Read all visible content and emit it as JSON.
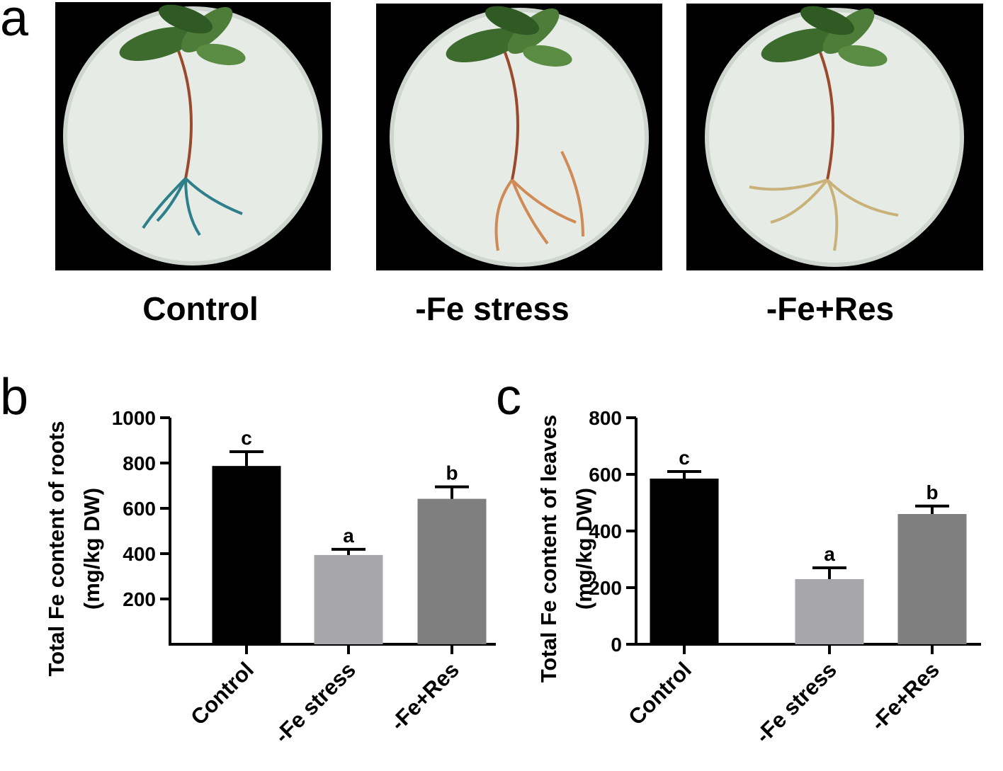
{
  "panel_a": {
    "label": "a",
    "captions": [
      "Control",
      "-Fe stress",
      "-Fe+Res"
    ]
  },
  "chart_data": [
    {
      "type": "bar",
      "panel_label": "b",
      "ylabel": [
        "Total Fe content of roots",
        "(mg/kg DW)"
      ],
      "categories": [
        "Control",
        "-Fe stress",
        "-Fe+Res"
      ],
      "values": [
        787,
        394,
        642
      ],
      "errors": [
        63,
        25,
        53
      ],
      "annotations": [
        "c",
        "a",
        "b"
      ],
      "colors": [
        "#000000",
        "#a6a6ab",
        "#7f7f7f"
      ],
      "ylim": [
        0,
        1000
      ],
      "yticks": [
        200,
        400,
        600,
        800,
        1000
      ]
    },
    {
      "type": "bar",
      "panel_label": "c",
      "ylabel": [
        "Total Fe content of leaves",
        "(mg/kg DW)"
      ],
      "categories": [
        "Control",
        "-Fe stress",
        "-Fe+Res"
      ],
      "values": [
        585,
        230,
        460
      ],
      "errors": [
        25,
        40,
        28
      ],
      "annotations": [
        "c",
        "a",
        "b"
      ],
      "colors": [
        "#000000",
        "#a6a6ab",
        "#7f7f7f"
      ],
      "ylim": [
        0,
        800
      ],
      "yticks": [
        0,
        200,
        400,
        600,
        800
      ]
    }
  ]
}
